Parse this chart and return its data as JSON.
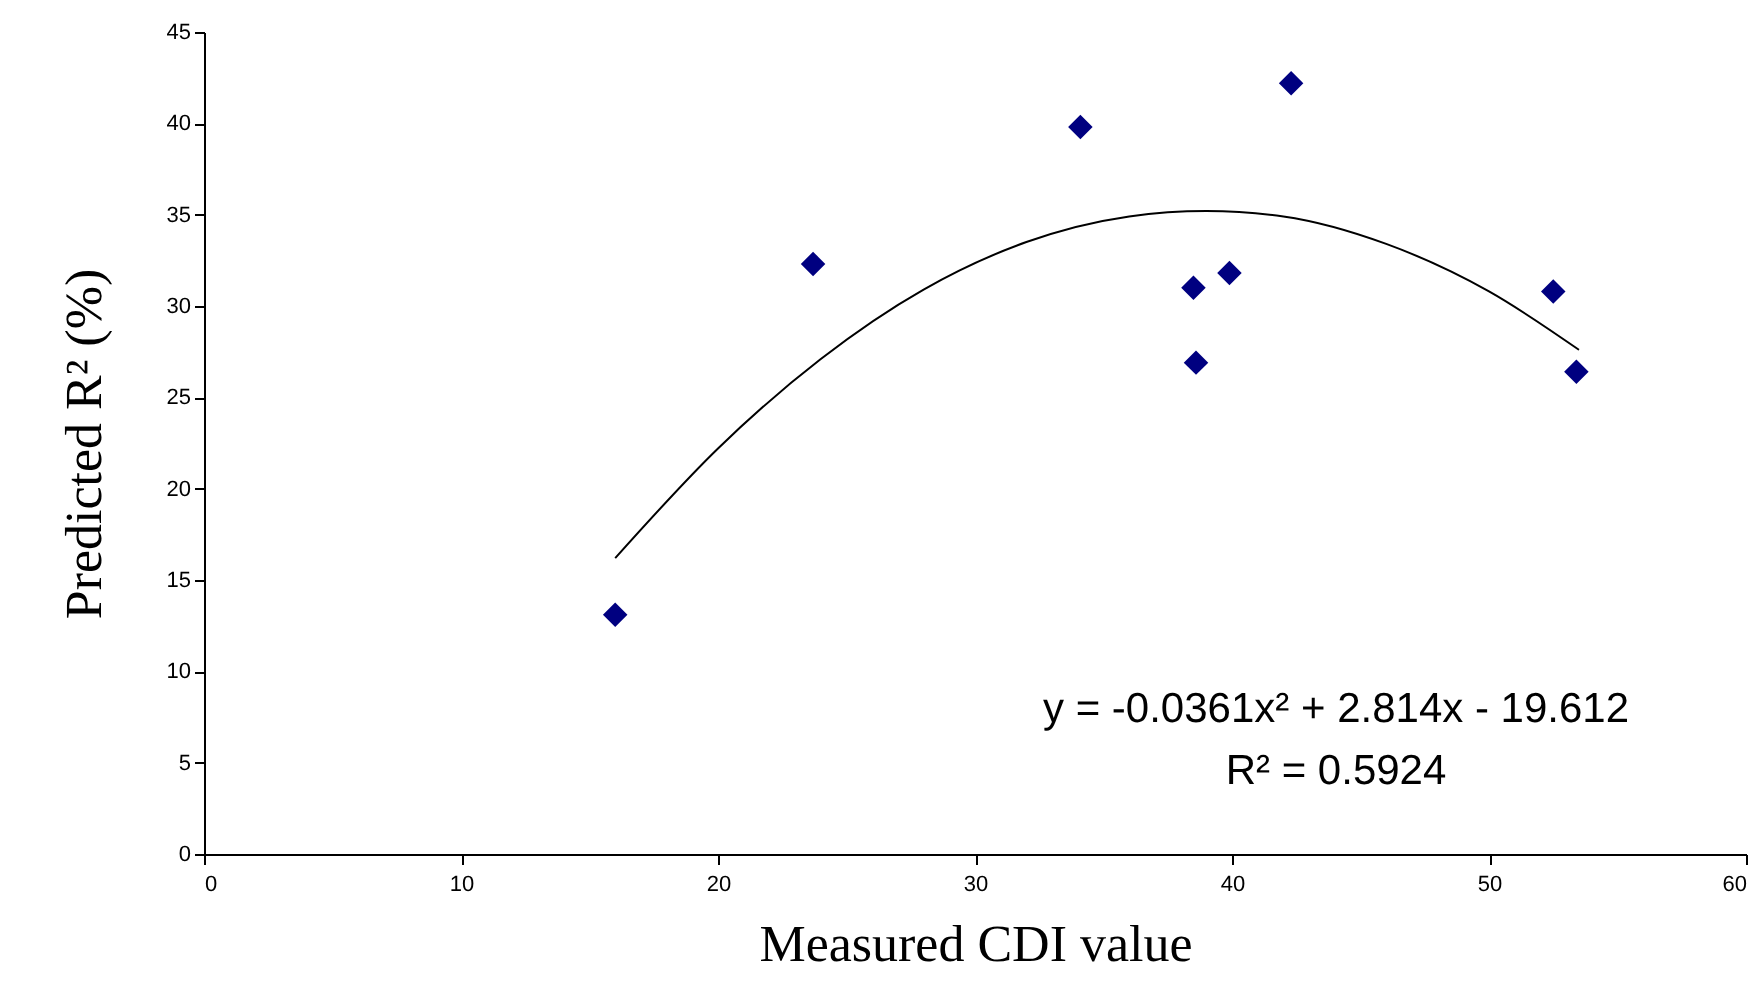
{
  "chart_data": {
    "type": "scatter",
    "xlabel": "Measured CDI value",
    "ylabel": "Predicted R² (%)",
    "xlim": [
      0,
      60
    ],
    "xticks": [
      0,
      10,
      20,
      30,
      40,
      50,
      60
    ],
    "ylim": [
      0,
      45
    ],
    "yticks": [
      0,
      5,
      10,
      15,
      20,
      25,
      30,
      35,
      40,
      45
    ],
    "grid": false,
    "marker": "diamond",
    "annotations": [
      "y = -0.0361x² + 2.814x - 19.612",
      "R² = 0.5924"
    ],
    "series": [
      {
        "color": "#000080",
        "x": [
          16.0,
          23.7,
          34.1,
          42.3,
          38.5,
          39.9,
          38.6,
          52.5,
          53.4
        ],
        "values": [
          13.1,
          32.3,
          39.8,
          42.2,
          31.0,
          31.8,
          26.9,
          30.8,
          26.4
        ]
      },
      {
        "type": "line",
        "color": "#000000",
        "marker": "none",
        "x": [
          16,
          20,
          24,
          28,
          32,
          36,
          39,
          42,
          46,
          50,
          53.5
        ],
        "values": [
          16.2,
          22.2,
          27.1,
          30.9,
          33.5,
          34.9,
          35.2,
          34.9,
          33.4,
          30.8,
          27.6
        ]
      }
    ]
  }
}
